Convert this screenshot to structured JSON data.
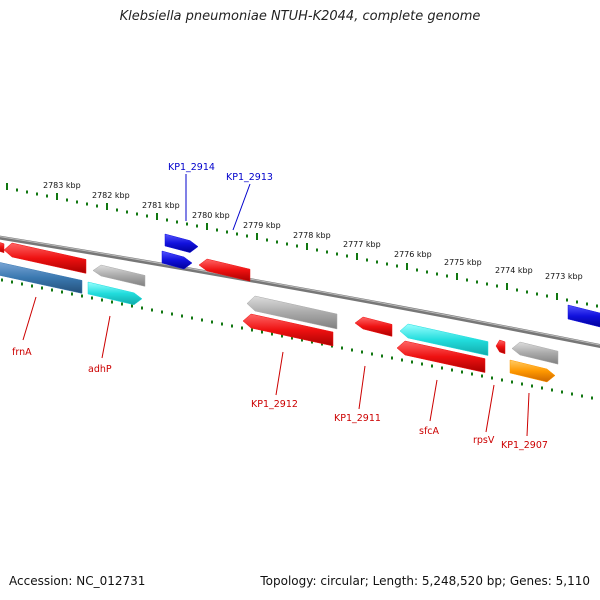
{
  "title": "Klebsiella pneumoniae NTUH-K2044, complete genome",
  "footer": {
    "accession": "Accession: NC_012731",
    "summary": "Topology: circular; Length: 5,248,520 bp; Genes: 5,110"
  },
  "colors": {
    "red": "#ee1111",
    "grey": "#aaaaaa",
    "cyan": "#22dddd",
    "blue": "#1111dd",
    "steelblue": "#3a78b0",
    "orange": "#ff9900",
    "tick": "#117711",
    "backbone": "#777777",
    "label_red": "#cc0000",
    "label_blue": "#0000cc"
  },
  "scale": {
    "ticks": [
      {
        "label": "2783 kbp"
      },
      {
        "label": "2782 kbp"
      },
      {
        "label": "2781 kbp"
      },
      {
        "label": "2780 kbp"
      },
      {
        "label": "2779 kbp"
      },
      {
        "label": "2778 kbp"
      },
      {
        "label": "2777 kbp"
      },
      {
        "label": "2776 kbp"
      },
      {
        "label": "2775 kbp"
      },
      {
        "label": "2774 kbp"
      },
      {
        "label": "2773 kbp"
      }
    ]
  },
  "features": [
    {
      "kind": "gene",
      "color": "red",
      "strand": "minus"
    },
    {
      "kind": "gene",
      "color": "steelblue",
      "strand": "minus"
    },
    {
      "kind": "gene",
      "color": "red",
      "strand": "minus"
    },
    {
      "kind": "gene",
      "color": "grey",
      "strand": "minus"
    },
    {
      "kind": "gene",
      "color": "cyan",
      "strand": "plus"
    },
    {
      "kind": "gene",
      "color": "blue",
      "strand": "plus"
    },
    {
      "kind": "gene",
      "color": "blue",
      "strand": "plus"
    },
    {
      "kind": "gene",
      "color": "red",
      "strand": "minus"
    },
    {
      "kind": "gene",
      "color": "grey",
      "strand": "minus"
    },
    {
      "kind": "gene",
      "color": "red",
      "strand": "minus"
    },
    {
      "kind": "gene",
      "color": "red",
      "strand": "minus"
    },
    {
      "kind": "gene",
      "color": "cyan",
      "strand": "minus"
    },
    {
      "kind": "gene",
      "color": "red",
      "strand": "minus"
    },
    {
      "kind": "gene",
      "color": "red",
      "strand": "minus"
    },
    {
      "kind": "gene",
      "color": "grey",
      "strand": "minus"
    },
    {
      "kind": "gene",
      "color": "orange",
      "strand": "plus"
    },
    {
      "kind": "gene",
      "color": "blue",
      "strand": "plus"
    }
  ],
  "labels": [
    {
      "text": "frnA",
      "color": "label_red"
    },
    {
      "text": "adhP",
      "color": "label_red"
    },
    {
      "text": "KP1_2914",
      "color": "label_blue"
    },
    {
      "text": "KP1_2913",
      "color": "label_blue"
    },
    {
      "text": "KP1_2912",
      "color": "label_red"
    },
    {
      "text": "KP1_2911",
      "color": "label_red"
    },
    {
      "text": "sfcA",
      "color": "label_red"
    },
    {
      "text": "rpsV",
      "color": "label_red"
    },
    {
      "text": "KP1_2907",
      "color": "label_red"
    }
  ]
}
